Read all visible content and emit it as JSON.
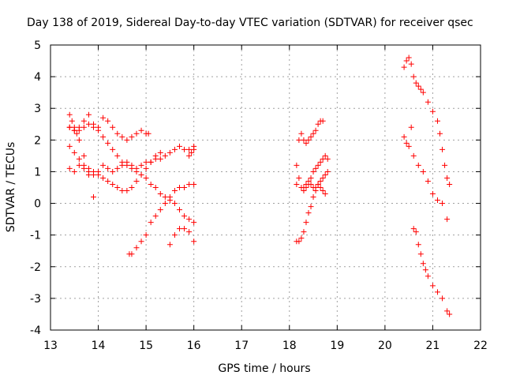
{
  "chart_data": {
    "type": "scatter",
    "title": "Day 138 of 2019, Sidereal Day-to-day VTEC variation (SDTVAR) for receiver qsec",
    "xlabel": "GPS time / hours",
    "ylabel": "SDTVAR / TECUs",
    "xlim": [
      13,
      22
    ],
    "ylim": [
      -4,
      5
    ],
    "xticks": [
      13,
      14,
      15,
      16,
      17,
      18,
      19,
      20,
      21,
      22
    ],
    "yticks": [
      -4,
      -3,
      -2,
      -1,
      0,
      1,
      2,
      3,
      4,
      5
    ],
    "grid": true,
    "marker": "plus",
    "color": "#ff0000",
    "series": [
      {
        "x": [
          13.4,
          13.5,
          13.6,
          13.7,
          13.8,
          13.9,
          14.0,
          14.1,
          14.2,
          14.3,
          14.4,
          14.5,
          14.6,
          14.7,
          14.8,
          14.9,
          15.0,
          15.05
        ],
        "y": [
          2.4,
          2.3,
          2.4,
          2.6,
          2.8,
          2.5,
          2.4,
          2.7,
          2.6,
          2.4,
          2.2,
          2.1,
          2.0,
          2.1,
          2.2,
          2.3,
          2.2,
          2.2
        ]
      },
      {
        "x": [
          13.4,
          13.45,
          13.5,
          13.55,
          13.6,
          13.7,
          13.8,
          13.9
        ],
        "y": [
          2.8,
          2.6,
          2.4,
          2.2,
          2.0,
          1.5,
          0.9,
          0.2
        ]
      },
      {
        "x": [
          13.4,
          13.5,
          13.6,
          13.7,
          13.8,
          13.9,
          14.0,
          14.1,
          14.2,
          14.3,
          14.4,
          14.5,
          14.6,
          14.7,
          14.8,
          14.9,
          15.0,
          15.1,
          15.2,
          15.3,
          15.4,
          15.5,
          15.6,
          15.7,
          15.8,
          15.9,
          16.0
        ],
        "y": [
          2.4,
          2.3,
          2.3,
          2.4,
          2.5,
          2.4,
          2.3,
          2.1,
          1.9,
          1.7,
          1.5,
          1.3,
          1.2,
          1.1,
          1.0,
          0.9,
          0.8,
          0.6,
          0.5,
          0.3,
          0.2,
          0.1,
          0.0,
          -0.2,
          -0.4,
          -0.5,
          -0.6
        ]
      },
      {
        "x": [
          13.4,
          13.5,
          13.6,
          13.7,
          13.8,
          13.9,
          14.0,
          14.1,
          14.2,
          14.3,
          14.4,
          14.5,
          14.6,
          14.7,
          14.8,
          14.9,
          15.0,
          15.1,
          15.2,
          15.3
        ],
        "y": [
          1.8,
          1.6,
          1.4,
          1.2,
          1.1,
          1.0,
          0.9,
          0.8,
          0.7,
          0.6,
          0.5,
          0.4,
          0.4,
          0.5,
          0.7,
          0.9,
          1.1,
          1.3,
          1.5,
          1.6
        ]
      },
      {
        "x": [
          13.4,
          13.5,
          13.6,
          13.7,
          13.8,
          13.9,
          14.0,
          14.1,
          14.2,
          14.3,
          14.4,
          14.5,
          14.6,
          14.7,
          14.8,
          14.9,
          15.0,
          15.1,
          15.2,
          15.3,
          15.4,
          15.5,
          15.6,
          15.7,
          15.8,
          15.9,
          16.0
        ],
        "y": [
          1.1,
          1.0,
          1.2,
          1.1,
          1.0,
          0.9,
          1.0,
          1.2,
          1.1,
          1.0,
          1.1,
          1.2,
          1.3,
          1.2,
          1.1,
          1.2,
          1.3,
          1.3,
          1.4,
          1.4,
          1.5,
          1.6,
          1.7,
          1.8,
          1.7,
          1.7,
          1.8
        ]
      },
      {
        "x": [
          14.65,
          14.7,
          14.8,
          14.9,
          15.0,
          15.1,
          15.2,
          15.3,
          15.4,
          15.5,
          15.6,
          15.7,
          15.8,
          15.9,
          16.0
        ],
        "y": [
          -1.6,
          -1.6,
          -1.4,
          -1.2,
          -1.0,
          -0.6,
          -0.4,
          -0.2,
          0.0,
          0.2,
          0.4,
          0.5,
          0.5,
          0.6,
          0.6
        ]
      },
      {
        "x": [
          15.5,
          15.6,
          15.7,
          15.8,
          15.9,
          16.0
        ],
        "y": [
          -1.3,
          -1.0,
          -0.8,
          -0.8,
          -0.9,
          -1.2
        ]
      },
      {
        "x": [
          15.9,
          15.95,
          16.0
        ],
        "y": [
          1.5,
          1.6,
          1.7
        ]
      },
      {
        "x": [
          18.15,
          18.2,
          18.25,
          18.3,
          18.35,
          18.4,
          18.45,
          18.5,
          18.55,
          18.6,
          18.65,
          18.7
        ],
        "y": [
          1.2,
          2.0,
          2.2,
          2.0,
          1.9,
          2.0,
          2.1,
          2.2,
          2.3,
          2.5,
          2.6,
          2.6
        ]
      },
      {
        "x": [
          18.15,
          18.2,
          18.25,
          18.3,
          18.35,
          18.4,
          18.45,
          18.5,
          18.55,
          18.6,
          18.65,
          18.7,
          18.75,
          18.8
        ],
        "y": [
          0.6,
          0.8,
          0.5,
          0.5,
          0.6,
          0.7,
          0.8,
          1.0,
          1.1,
          1.2,
          1.3,
          1.4,
          1.5,
          1.4
        ]
      },
      {
        "x": [
          18.15,
          18.2,
          18.25,
          18.3,
          18.35,
          18.4,
          18.45,
          18.5,
          18.55,
          18.6,
          18.65,
          18.7,
          18.75
        ],
        "y": [
          -1.2,
          -1.2,
          -1.1,
          -0.9,
          -0.6,
          -0.3,
          -0.1,
          0.2,
          0.4,
          0.6,
          0.5,
          0.4,
          0.3
        ]
      },
      {
        "x": [
          18.3,
          18.35,
          18.4,
          18.45,
          18.5,
          18.55,
          18.6,
          18.65,
          18.7,
          18.75,
          18.8
        ],
        "y": [
          0.4,
          0.5,
          0.6,
          0.6,
          0.5,
          0.5,
          0.6,
          0.7,
          0.8,
          0.9,
          1.0
        ]
      },
      {
        "x": [
          20.4,
          20.45,
          20.5,
          20.55,
          20.6,
          20.65,
          20.7,
          20.75,
          20.8,
          20.9,
          21.0,
          21.1,
          21.15,
          21.2,
          21.25,
          21.3,
          21.35
        ],
        "y": [
          4.3,
          4.5,
          4.6,
          4.4,
          4.0,
          3.8,
          3.7,
          3.6,
          3.5,
          3.2,
          2.9,
          2.6,
          2.2,
          1.7,
          1.2,
          0.8,
          0.6
        ]
      },
      {
        "x": [
          20.4,
          20.45,
          20.5,
          20.55,
          20.6,
          20.7,
          20.8,
          20.9,
          21.0,
          21.1,
          21.2,
          21.3
        ],
        "y": [
          2.1,
          1.9,
          1.8,
          2.4,
          1.5,
          1.2,
          1.0,
          0.7,
          0.3,
          0.1,
          0.0,
          -0.5
        ]
      },
      {
        "x": [
          20.6,
          20.65,
          20.7,
          20.75,
          20.8,
          20.85,
          20.9,
          21.0,
          21.1,
          21.2,
          21.3,
          21.35
        ],
        "y": [
          -0.8,
          -0.9,
          -1.3,
          -1.6,
          -1.9,
          -2.1,
          -2.3,
          -2.6,
          -2.8,
          -3.0,
          -3.4,
          -3.5
        ]
      }
    ]
  }
}
